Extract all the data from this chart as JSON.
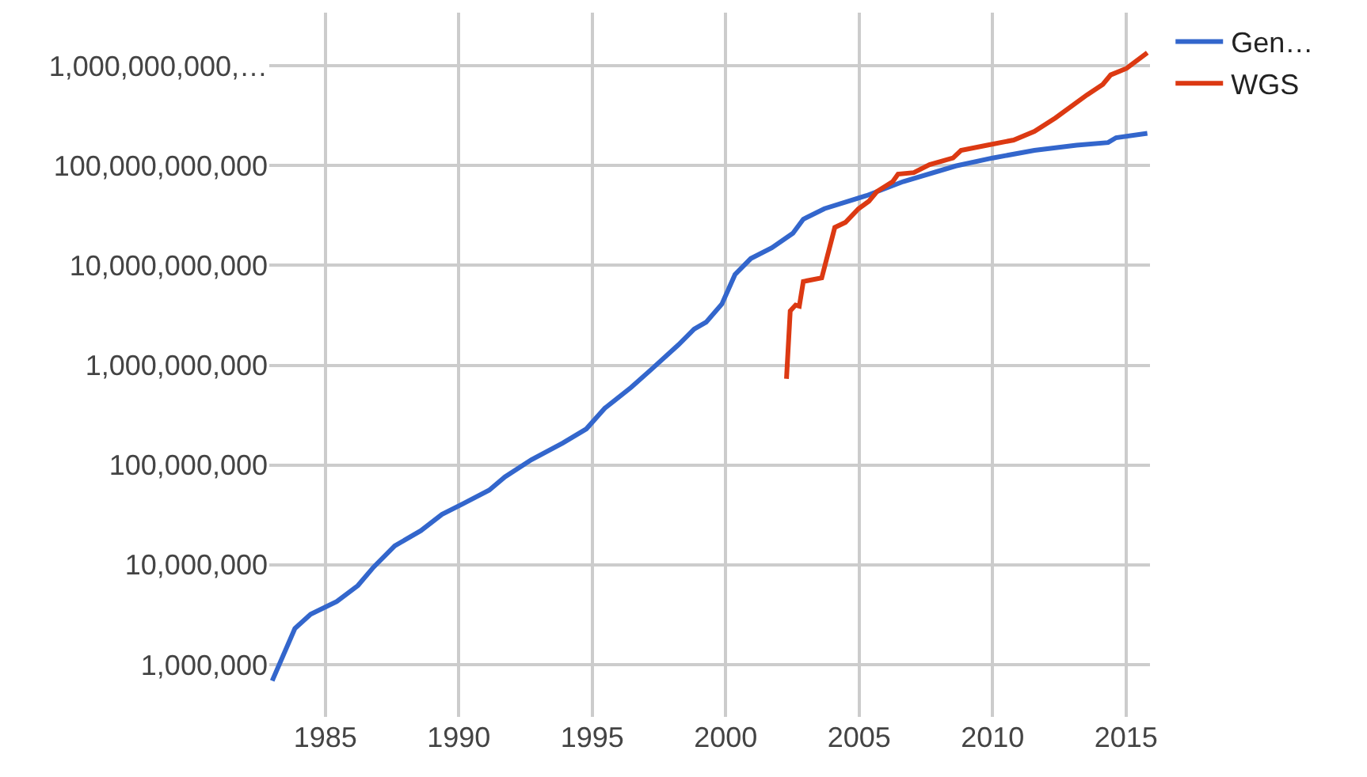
{
  "chart_data": {
    "type": "line",
    "log": "y",
    "grid": true,
    "legend": "top right",
    "marker": "none",
    "line_style": "solid",
    "xlim": [
      1982.9,
      2015.9
    ],
    "xticks": [
      1985,
      1990,
      1995,
      2000,
      2005,
      2010,
      2015
    ],
    "ylim": [
      300000,
      3400000000000
    ],
    "yticks": [
      {
        "value": 1000000,
        "label": "1,000,000"
      },
      {
        "value": 10000000,
        "label": "10,000,000"
      },
      {
        "value": 100000000,
        "label": "100,000,000"
      },
      {
        "value": 1000000000,
        "label": "1,000,000,000"
      },
      {
        "value": 10000000000,
        "label": "10,000,000,000"
      },
      {
        "value": 100000000000,
        "label": "100,000,000,000"
      },
      {
        "value": 1000000000000,
        "label": "1,000,000,000,…"
      }
    ],
    "series": [
      {
        "name": "Gen…",
        "color": "#3366cc",
        "x": [
          1983.01,
          1983.86,
          1984.45,
          1985.43,
          1986.22,
          1986.81,
          1987.6,
          1988.58,
          1989.37,
          1990.16,
          1991.14,
          1991.73,
          1992.72,
          1993.9,
          1994.78,
          1995.47,
          1996.46,
          1997.24,
          1998.23,
          1998.82,
          1999.27,
          1999.86,
          2000.35,
          2000.94,
          2001.73,
          2002.52,
          2002.91,
          2003.7,
          2005.28,
          2006.65,
          2008.62,
          2010.0,
          2011.57,
          2013.15,
          2014.33,
          2014.63,
          2015.8
        ],
        "values": [
          690000,
          2300000,
          3200000,
          4300000,
          6200000,
          9500000,
          15500000,
          22000000,
          32000000,
          41000000,
          56000000,
          76000000,
          113000000,
          166000000,
          230000000,
          370000000,
          600000000,
          920000000,
          1600000000,
          2300000000,
          2700000000,
          4100000000,
          8100000000,
          11700000000,
          15000000000,
          21000000000,
          29000000000,
          37000000000,
          50000000000,
          69000000000,
          99000000000,
          119000000000,
          142000000000,
          160000000000,
          170000000000,
          190000000000,
          210000000000
        ]
      },
      {
        "name": "WGS",
        "color": "#dc3912",
        "x": [
          2002.28,
          2002.42,
          2002.62,
          2002.76,
          2002.91,
          2003.6,
          2004.09,
          2004.49,
          2004.98,
          2005.37,
          2005.67,
          2006.26,
          2006.46,
          2007.05,
          2007.64,
          2008.52,
          2008.82,
          2009.8,
          2010.79,
          2011.57,
          2012.36,
          2013.54,
          2014.13,
          2014.43,
          2015.02,
          2015.8
        ],
        "values": [
          730000000,
          3500000000,
          4000000000,
          3900000000,
          6900000000,
          7500000000,
          24000000000,
          27000000000,
          37000000000,
          44000000000,
          55000000000,
          69000000000,
          82000000000,
          85000000000,
          102000000000,
          119000000000,
          142000000000,
          160000000000,
          180000000000,
          220000000000,
          300000000000,
          510000000000,
          650000000000,
          810000000000,
          940000000000,
          1350000000000
        ]
      }
    ]
  }
}
